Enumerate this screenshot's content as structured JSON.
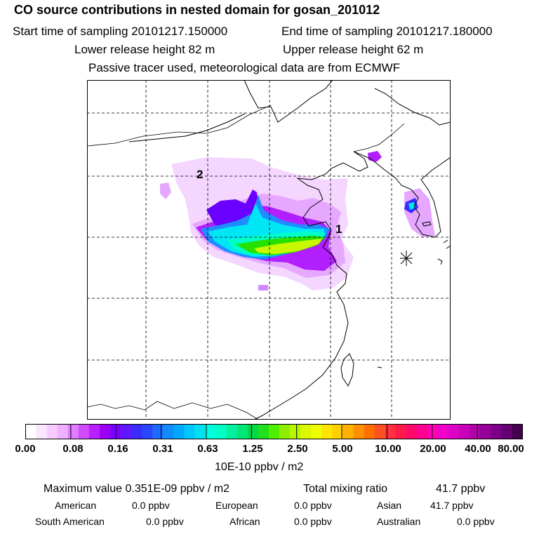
{
  "header": {
    "title": "CO  source contributions in nested domain for gosan_201012",
    "start_label": "Start time of sampling 20101217.150000",
    "end_label": "End time of sampling 20101217.180000",
    "lower_label": "Lower release height   82 m",
    "upper_label": "Upper release height   62 m",
    "note": "Passive tracer used, meteorological data are from ECMWF"
  },
  "map": {
    "markers": [
      {
        "label": "1"
      },
      {
        "label": "2"
      }
    ],
    "receptor_symbol": "station-star"
  },
  "colorbar": {
    "ticks": [
      "0.00",
      "0.08",
      "0.16",
      "0.31",
      "0.63",
      "1.25",
      "2.50",
      "5.00",
      "10.00",
      "20.00",
      "40.00",
      "80.00"
    ],
    "unit": "10E-10 ppbv / m2",
    "colors": [
      "#ffffff",
      "#fbe6ff",
      "#f6ccff",
      "#eeb0ff",
      "#e07cff",
      "#cf4dff",
      "#b91fff",
      "#9b00f5",
      "#7a00ff",
      "#5e17ff",
      "#3a2cff",
      "#2a44ff",
      "#1f6bff",
      "#0f8cff",
      "#00a8ff",
      "#00c8ff",
      "#00e0f0",
      "#00ffdf",
      "#00ffc6",
      "#00f0a0",
      "#00e676",
      "#00d94a",
      "#21e020",
      "#4fef00",
      "#8ef000",
      "#b8f500",
      "#dcf800",
      "#f0ff00",
      "#ffe400",
      "#ffd000",
      "#ffb000",
      "#ff9000",
      "#ff7000",
      "#ff5020",
      "#ff3040",
      "#ff1a4a",
      "#ff0a6a",
      "#ff0090",
      "#ff00b4",
      "#f000c8",
      "#dc00c8",
      "#c800b8",
      "#b000a8",
      "#960098",
      "#7c0088",
      "#640070",
      "#460050"
    ]
  },
  "stats": {
    "max_label": "Maximum value  0.351E-09 ppbv / m2",
    "total_label": "Total mixing ratio",
    "total_value": "41.7 ppbv",
    "regions": [
      {
        "name": "American",
        "value": "0.0 ppbv"
      },
      {
        "name": "European",
        "value": "0.0 ppbv"
      },
      {
        "name": "Asian",
        "value": "41.7 ppbv"
      },
      {
        "name": "South American",
        "value": "0.0 ppbv"
      },
      {
        "name": "African",
        "value": "0.0 ppbv"
      },
      {
        "name": "Australian",
        "value": "0.0 ppbv"
      }
    ]
  }
}
